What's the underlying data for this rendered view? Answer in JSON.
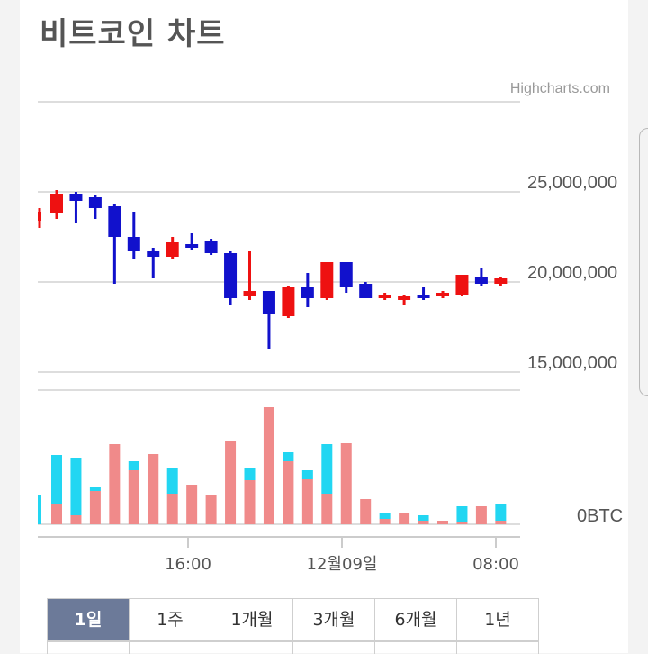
{
  "title": "비트코인 차트",
  "credit": "Highcharts.com",
  "tabs": [
    {
      "label": "1일",
      "active": true
    },
    {
      "label": "1주",
      "active": false
    },
    {
      "label": "1개월",
      "active": false
    },
    {
      "label": "3개월",
      "active": false
    },
    {
      "label": "6개월",
      "active": false
    },
    {
      "label": "1년",
      "active": false
    }
  ],
  "colors": {
    "up": "#ee1111",
    "down": "#1111cc",
    "volume_buy": "#f08a8a",
    "volume_sell": "#22d6f2",
    "grid": "#dddddd",
    "tab_active_bg": "#6c7a99"
  },
  "chart_data": {
    "type": "candlestick",
    "price_axis": {
      "ticks": [
        15000000,
        20000000,
        25000000
      ],
      "tick_labels": [
        "15,000,000",
        "20,000,000",
        "25,000,000"
      ],
      "range": [
        15000000,
        30000000
      ],
      "position": "right"
    },
    "volume_axis": {
      "tick_labels": [
        "0BTC"
      ],
      "position": "right"
    },
    "x_tick_labels": [
      "16:00",
      "12월09일",
      "08:00"
    ],
    "candles": [
      {
        "open": 23400000,
        "high": 24100000,
        "low": 23000000,
        "close": 23900000,
        "partial": true
      },
      {
        "open": 23800000,
        "high": 25100000,
        "low": 23500000,
        "close": 24900000
      },
      {
        "open": 24900000,
        "high": 25000000,
        "low": 23300000,
        "close": 24500000
      },
      {
        "open": 24700000,
        "high": 24800000,
        "low": 23500000,
        "close": 24100000
      },
      {
        "open": 24200000,
        "high": 24300000,
        "low": 19900000,
        "close": 22500000
      },
      {
        "open": 22500000,
        "high": 23900000,
        "low": 21300000,
        "close": 21700000
      },
      {
        "open": 21700000,
        "high": 21900000,
        "low": 20200000,
        "close": 21400000
      },
      {
        "open": 21400000,
        "high": 22500000,
        "low": 21300000,
        "close": 22200000
      },
      {
        "open": 22100000,
        "high": 22700000,
        "low": 21800000,
        "close": 21900000
      },
      {
        "open": 22300000,
        "high": 22400000,
        "low": 21500000,
        "close": 21600000
      },
      {
        "open": 21600000,
        "high": 21700000,
        "low": 18700000,
        "close": 19100000
      },
      {
        "open": 19200000,
        "high": 21700000,
        "low": 19000000,
        "close": 19500000
      },
      {
        "open": 19500000,
        "high": 19500000,
        "low": 16300000,
        "close": 18200000
      },
      {
        "open": 18100000,
        "high": 19800000,
        "low": 18000000,
        "close": 19700000
      },
      {
        "open": 19700000,
        "high": 20500000,
        "low": 18600000,
        "close": 19100000
      },
      {
        "open": 19100000,
        "high": 21100000,
        "low": 19000000,
        "close": 21100000
      },
      {
        "open": 21100000,
        "high": 21100000,
        "low": 19400000,
        "close": 19700000
      },
      {
        "open": 19900000,
        "high": 20000000,
        "low": 19100000,
        "close": 19100000
      },
      {
        "open": 19100000,
        "high": 19400000,
        "low": 19000000,
        "close": 19300000
      },
      {
        "open": 19000000,
        "high": 19300000,
        "low": 18700000,
        "close": 19200000
      },
      {
        "open": 19300000,
        "high": 19700000,
        "low": 19000000,
        "close": 19100000
      },
      {
        "open": 19200000,
        "high": 19500000,
        "low": 19100000,
        "close": 19400000
      },
      {
        "open": 19300000,
        "high": 20400000,
        "low": 19200000,
        "close": 20400000
      },
      {
        "open": 20300000,
        "high": 20800000,
        "low": 19800000,
        "close": 19900000
      },
      {
        "open": 19900000,
        "high": 20300000,
        "low": 19800000,
        "close": 20200000
      }
    ],
    "volumes": [
      {
        "buy": 0,
        "sell": 32,
        "partial": true
      },
      {
        "buy": 22,
        "sell": 55
      },
      {
        "buy": 10,
        "sell": 64
      },
      {
        "buy": 37,
        "sell": 4
      },
      {
        "buy": 89,
        "sell": 0
      },
      {
        "buy": 60,
        "sell": 10
      },
      {
        "buy": 78,
        "sell": 0
      },
      {
        "buy": 34,
        "sell": 28
      },
      {
        "buy": 44,
        "sell": 0
      },
      {
        "buy": 32,
        "sell": 0
      },
      {
        "buy": 92,
        "sell": 0
      },
      {
        "buy": 49,
        "sell": 14
      },
      {
        "buy": 130,
        "sell": 0
      },
      {
        "buy": 70,
        "sell": 10
      },
      {
        "buy": 50,
        "sell": 10
      },
      {
        "buy": 34,
        "sell": 55
      },
      {
        "buy": 90,
        "sell": 0
      },
      {
        "buy": 28,
        "sell": 0
      },
      {
        "buy": 6,
        "sell": 6
      },
      {
        "buy": 12,
        "sell": 0
      },
      {
        "buy": 4,
        "sell": 6
      },
      {
        "buy": 4,
        "sell": 0
      },
      {
        "buy": 2,
        "sell": 18
      },
      {
        "buy": 20,
        "sell": 0
      },
      {
        "buy": 4,
        "sell": 18
      }
    ]
  }
}
